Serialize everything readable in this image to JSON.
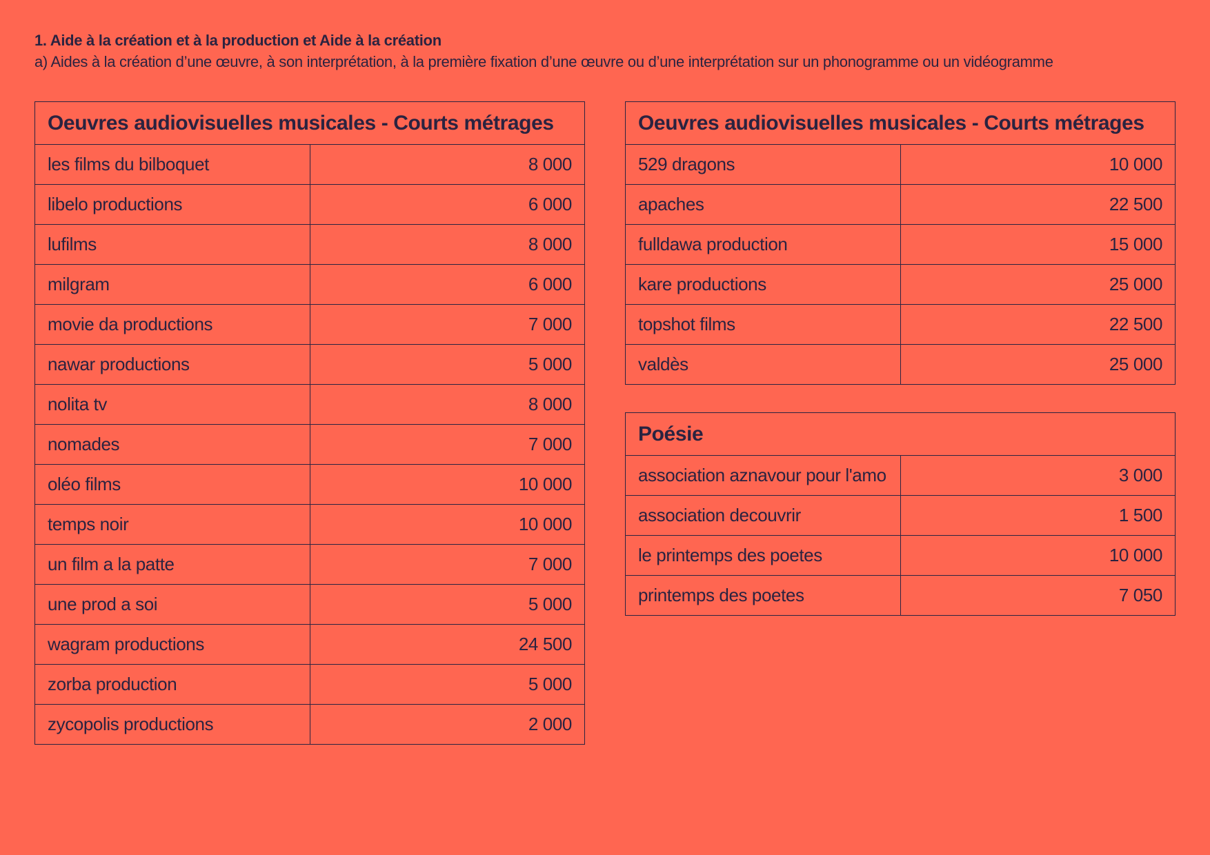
{
  "header": {
    "title": "1. Aide à la création et à la production et Aide à la création",
    "subtitle": "a) Aides à la création d’une œuvre, à son interprétation, à la première fixation d’une œuvre ou d’une interprétation sur un phonogramme ou un vidéogramme"
  },
  "tables": [
    {
      "title": "Oeuvres audiovisuelles musicales - Courts métrages",
      "rows": [
        [
          "les films du bilboquet",
          "8 000"
        ],
        [
          "libelo productions",
          "6 000"
        ],
        [
          "lufilms",
          "8 000"
        ],
        [
          "milgram",
          "6 000"
        ],
        [
          "movie da productions",
          "7 000"
        ],
        [
          "nawar productions",
          "5 000"
        ],
        [
          "nolita tv",
          "8 000"
        ],
        [
          "nomades",
          "7 000"
        ],
        [
          "oléo films",
          "10 000"
        ],
        [
          "temps noir",
          "10 000"
        ],
        [
          "un film a la patte",
          "7 000"
        ],
        [
          "une prod a soi",
          "5 000"
        ],
        [
          "wagram productions",
          "24 500"
        ],
        [
          "zorba production",
          "5 000"
        ],
        [
          "zycopolis productions",
          "2 000"
        ]
      ]
    },
    {
      "title": "Oeuvres audiovisuelles musicales - Courts métrages",
      "rows": [
        [
          "529 dragons",
          "10 000"
        ],
        [
          "apaches",
          "22 500"
        ],
        [
          "fulldawa production",
          "15 000"
        ],
        [
          "kare productions",
          "25 000"
        ],
        [
          "topshot films",
          "22 500"
        ],
        [
          "valdès",
          "25 000"
        ]
      ]
    },
    {
      "title": "Poésie",
      "rows": [
        [
          "association aznavour pour l'amo",
          "3 000"
        ],
        [
          "association decouvrir",
          "1 500"
        ],
        [
          "le printemps des poetes",
          "10 000"
        ],
        [
          "printemps des poetes",
          "7 050"
        ]
      ]
    }
  ]
}
